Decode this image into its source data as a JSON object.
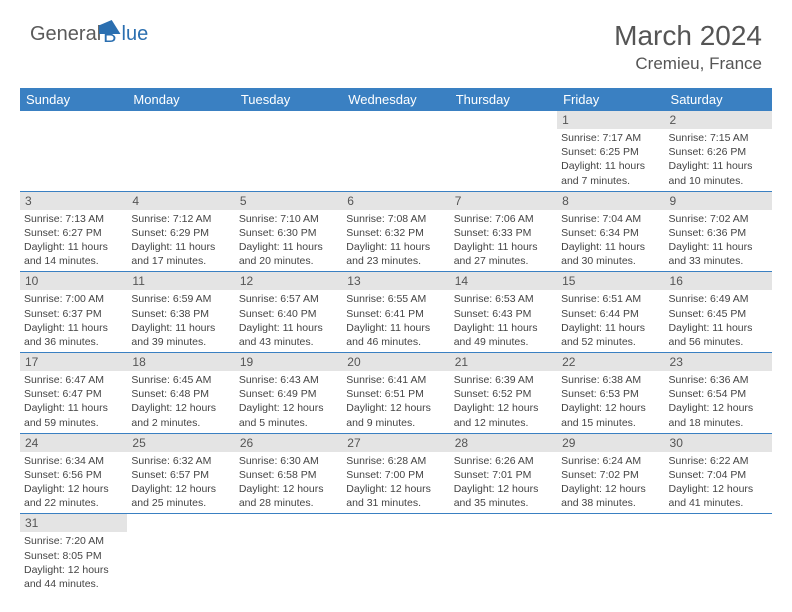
{
  "logo": {
    "part1": "General",
    "part2": "lue"
  },
  "title": "March 2024",
  "location": "Cremieu, France",
  "header_bg": "#3a80c2",
  "daybar_bg": "#e4e4e4",
  "dow": [
    "Sunday",
    "Monday",
    "Tuesday",
    "Wednesday",
    "Thursday",
    "Friday",
    "Saturday"
  ],
  "weeks": [
    [
      null,
      null,
      null,
      null,
      null,
      {
        "n": "1",
        "sr": "7:17 AM",
        "ss": "6:25 PM",
        "dl": "11 hours and 7 minutes."
      },
      {
        "n": "2",
        "sr": "7:15 AM",
        "ss": "6:26 PM",
        "dl": "11 hours and 10 minutes."
      }
    ],
    [
      {
        "n": "3",
        "sr": "7:13 AM",
        "ss": "6:27 PM",
        "dl": "11 hours and 14 minutes."
      },
      {
        "n": "4",
        "sr": "7:12 AM",
        "ss": "6:29 PM",
        "dl": "11 hours and 17 minutes."
      },
      {
        "n": "5",
        "sr": "7:10 AM",
        "ss": "6:30 PM",
        "dl": "11 hours and 20 minutes."
      },
      {
        "n": "6",
        "sr": "7:08 AM",
        "ss": "6:32 PM",
        "dl": "11 hours and 23 minutes."
      },
      {
        "n": "7",
        "sr": "7:06 AM",
        "ss": "6:33 PM",
        "dl": "11 hours and 27 minutes."
      },
      {
        "n": "8",
        "sr": "7:04 AM",
        "ss": "6:34 PM",
        "dl": "11 hours and 30 minutes."
      },
      {
        "n": "9",
        "sr": "7:02 AM",
        "ss": "6:36 PM",
        "dl": "11 hours and 33 minutes."
      }
    ],
    [
      {
        "n": "10",
        "sr": "7:00 AM",
        "ss": "6:37 PM",
        "dl": "11 hours and 36 minutes."
      },
      {
        "n": "11",
        "sr": "6:59 AM",
        "ss": "6:38 PM",
        "dl": "11 hours and 39 minutes."
      },
      {
        "n": "12",
        "sr": "6:57 AM",
        "ss": "6:40 PM",
        "dl": "11 hours and 43 minutes."
      },
      {
        "n": "13",
        "sr": "6:55 AM",
        "ss": "6:41 PM",
        "dl": "11 hours and 46 minutes."
      },
      {
        "n": "14",
        "sr": "6:53 AM",
        "ss": "6:43 PM",
        "dl": "11 hours and 49 minutes."
      },
      {
        "n": "15",
        "sr": "6:51 AM",
        "ss": "6:44 PM",
        "dl": "11 hours and 52 minutes."
      },
      {
        "n": "16",
        "sr": "6:49 AM",
        "ss": "6:45 PM",
        "dl": "11 hours and 56 minutes."
      }
    ],
    [
      {
        "n": "17",
        "sr": "6:47 AM",
        "ss": "6:47 PM",
        "dl": "11 hours and 59 minutes."
      },
      {
        "n": "18",
        "sr": "6:45 AM",
        "ss": "6:48 PM",
        "dl": "12 hours and 2 minutes."
      },
      {
        "n": "19",
        "sr": "6:43 AM",
        "ss": "6:49 PM",
        "dl": "12 hours and 5 minutes."
      },
      {
        "n": "20",
        "sr": "6:41 AM",
        "ss": "6:51 PM",
        "dl": "12 hours and 9 minutes."
      },
      {
        "n": "21",
        "sr": "6:39 AM",
        "ss": "6:52 PM",
        "dl": "12 hours and 12 minutes."
      },
      {
        "n": "22",
        "sr": "6:38 AM",
        "ss": "6:53 PM",
        "dl": "12 hours and 15 minutes."
      },
      {
        "n": "23",
        "sr": "6:36 AM",
        "ss": "6:54 PM",
        "dl": "12 hours and 18 minutes."
      }
    ],
    [
      {
        "n": "24",
        "sr": "6:34 AM",
        "ss": "6:56 PM",
        "dl": "12 hours and 22 minutes."
      },
      {
        "n": "25",
        "sr": "6:32 AM",
        "ss": "6:57 PM",
        "dl": "12 hours and 25 minutes."
      },
      {
        "n": "26",
        "sr": "6:30 AM",
        "ss": "6:58 PM",
        "dl": "12 hours and 28 minutes."
      },
      {
        "n": "27",
        "sr": "6:28 AM",
        "ss": "7:00 PM",
        "dl": "12 hours and 31 minutes."
      },
      {
        "n": "28",
        "sr": "6:26 AM",
        "ss": "7:01 PM",
        "dl": "12 hours and 35 minutes."
      },
      {
        "n": "29",
        "sr": "6:24 AM",
        "ss": "7:02 PM",
        "dl": "12 hours and 38 minutes."
      },
      {
        "n": "30",
        "sr": "6:22 AM",
        "ss": "7:04 PM",
        "dl": "12 hours and 41 minutes."
      }
    ],
    [
      {
        "n": "31",
        "sr": "7:20 AM",
        "ss": "8:05 PM",
        "dl": "12 hours and 44 minutes."
      },
      null,
      null,
      null,
      null,
      null,
      null
    ]
  ],
  "labels": {
    "sunrise": "Sunrise:",
    "sunset": "Sunset:",
    "daylight": "Daylight:"
  }
}
